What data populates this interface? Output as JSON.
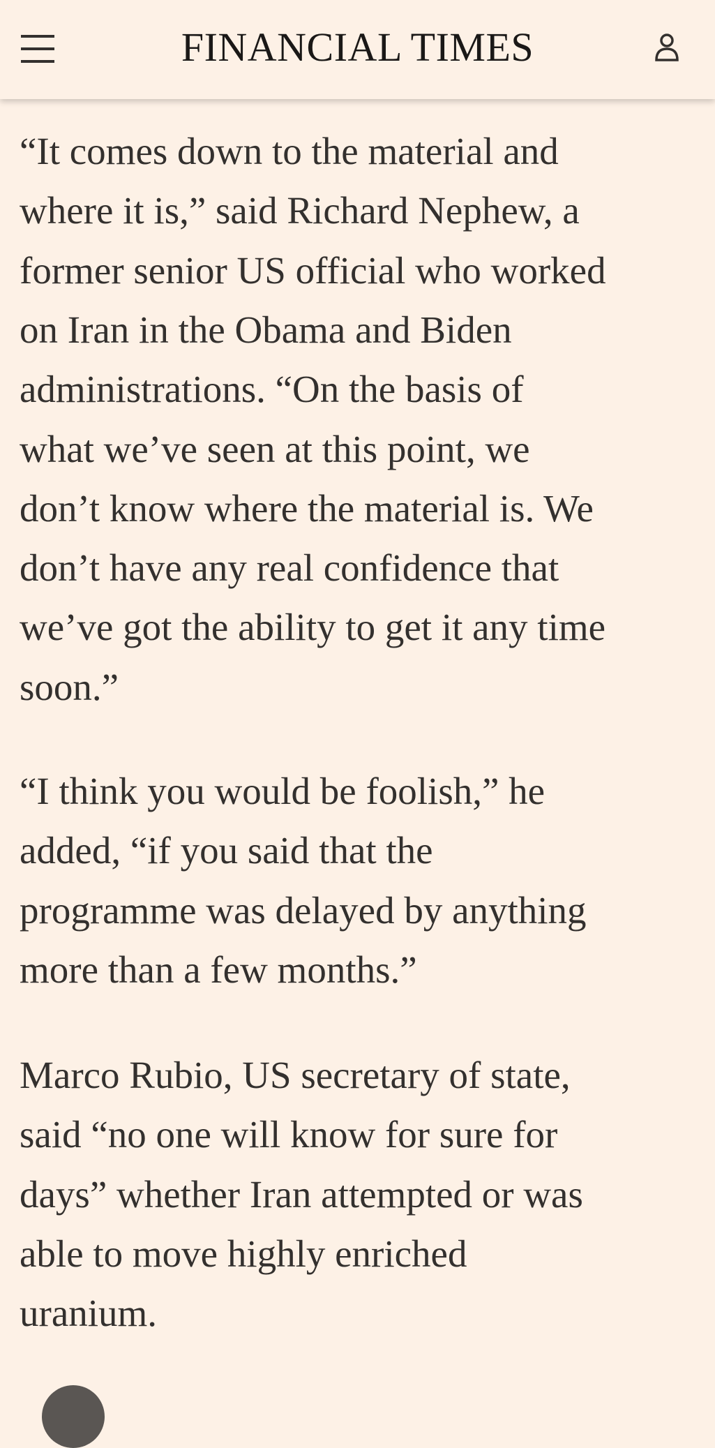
{
  "header": {
    "title": "FINANCIAL TIMES"
  },
  "paragraphs": [
    {
      "lines": [
        "“It comes down to the material and",
        "where it is,” said Richard Nephew, a",
        "former senior US official who worked",
        "on Iran in the Obama and Biden",
        "administrations. “On the basis of",
        "what we’ve seen at this point, we",
        "don’t know where the material is. We",
        "don’t have any real confidence that",
        "we’ve got the ability to get it any time",
        "soon.”"
      ]
    },
    {
      "lines": [
        "“I think you would be foolish,” he",
        "added, “if you said that the",
        "programme was delayed by anything",
        "more than a few months.”"
      ]
    },
    {
      "lines": [
        "Marco Rubio, US secretary of state,",
        "said “no one will know for sure for",
        "days” whether Iran attempted or was",
        "able to move highly enriched",
        "uranium."
      ]
    }
  ]
}
